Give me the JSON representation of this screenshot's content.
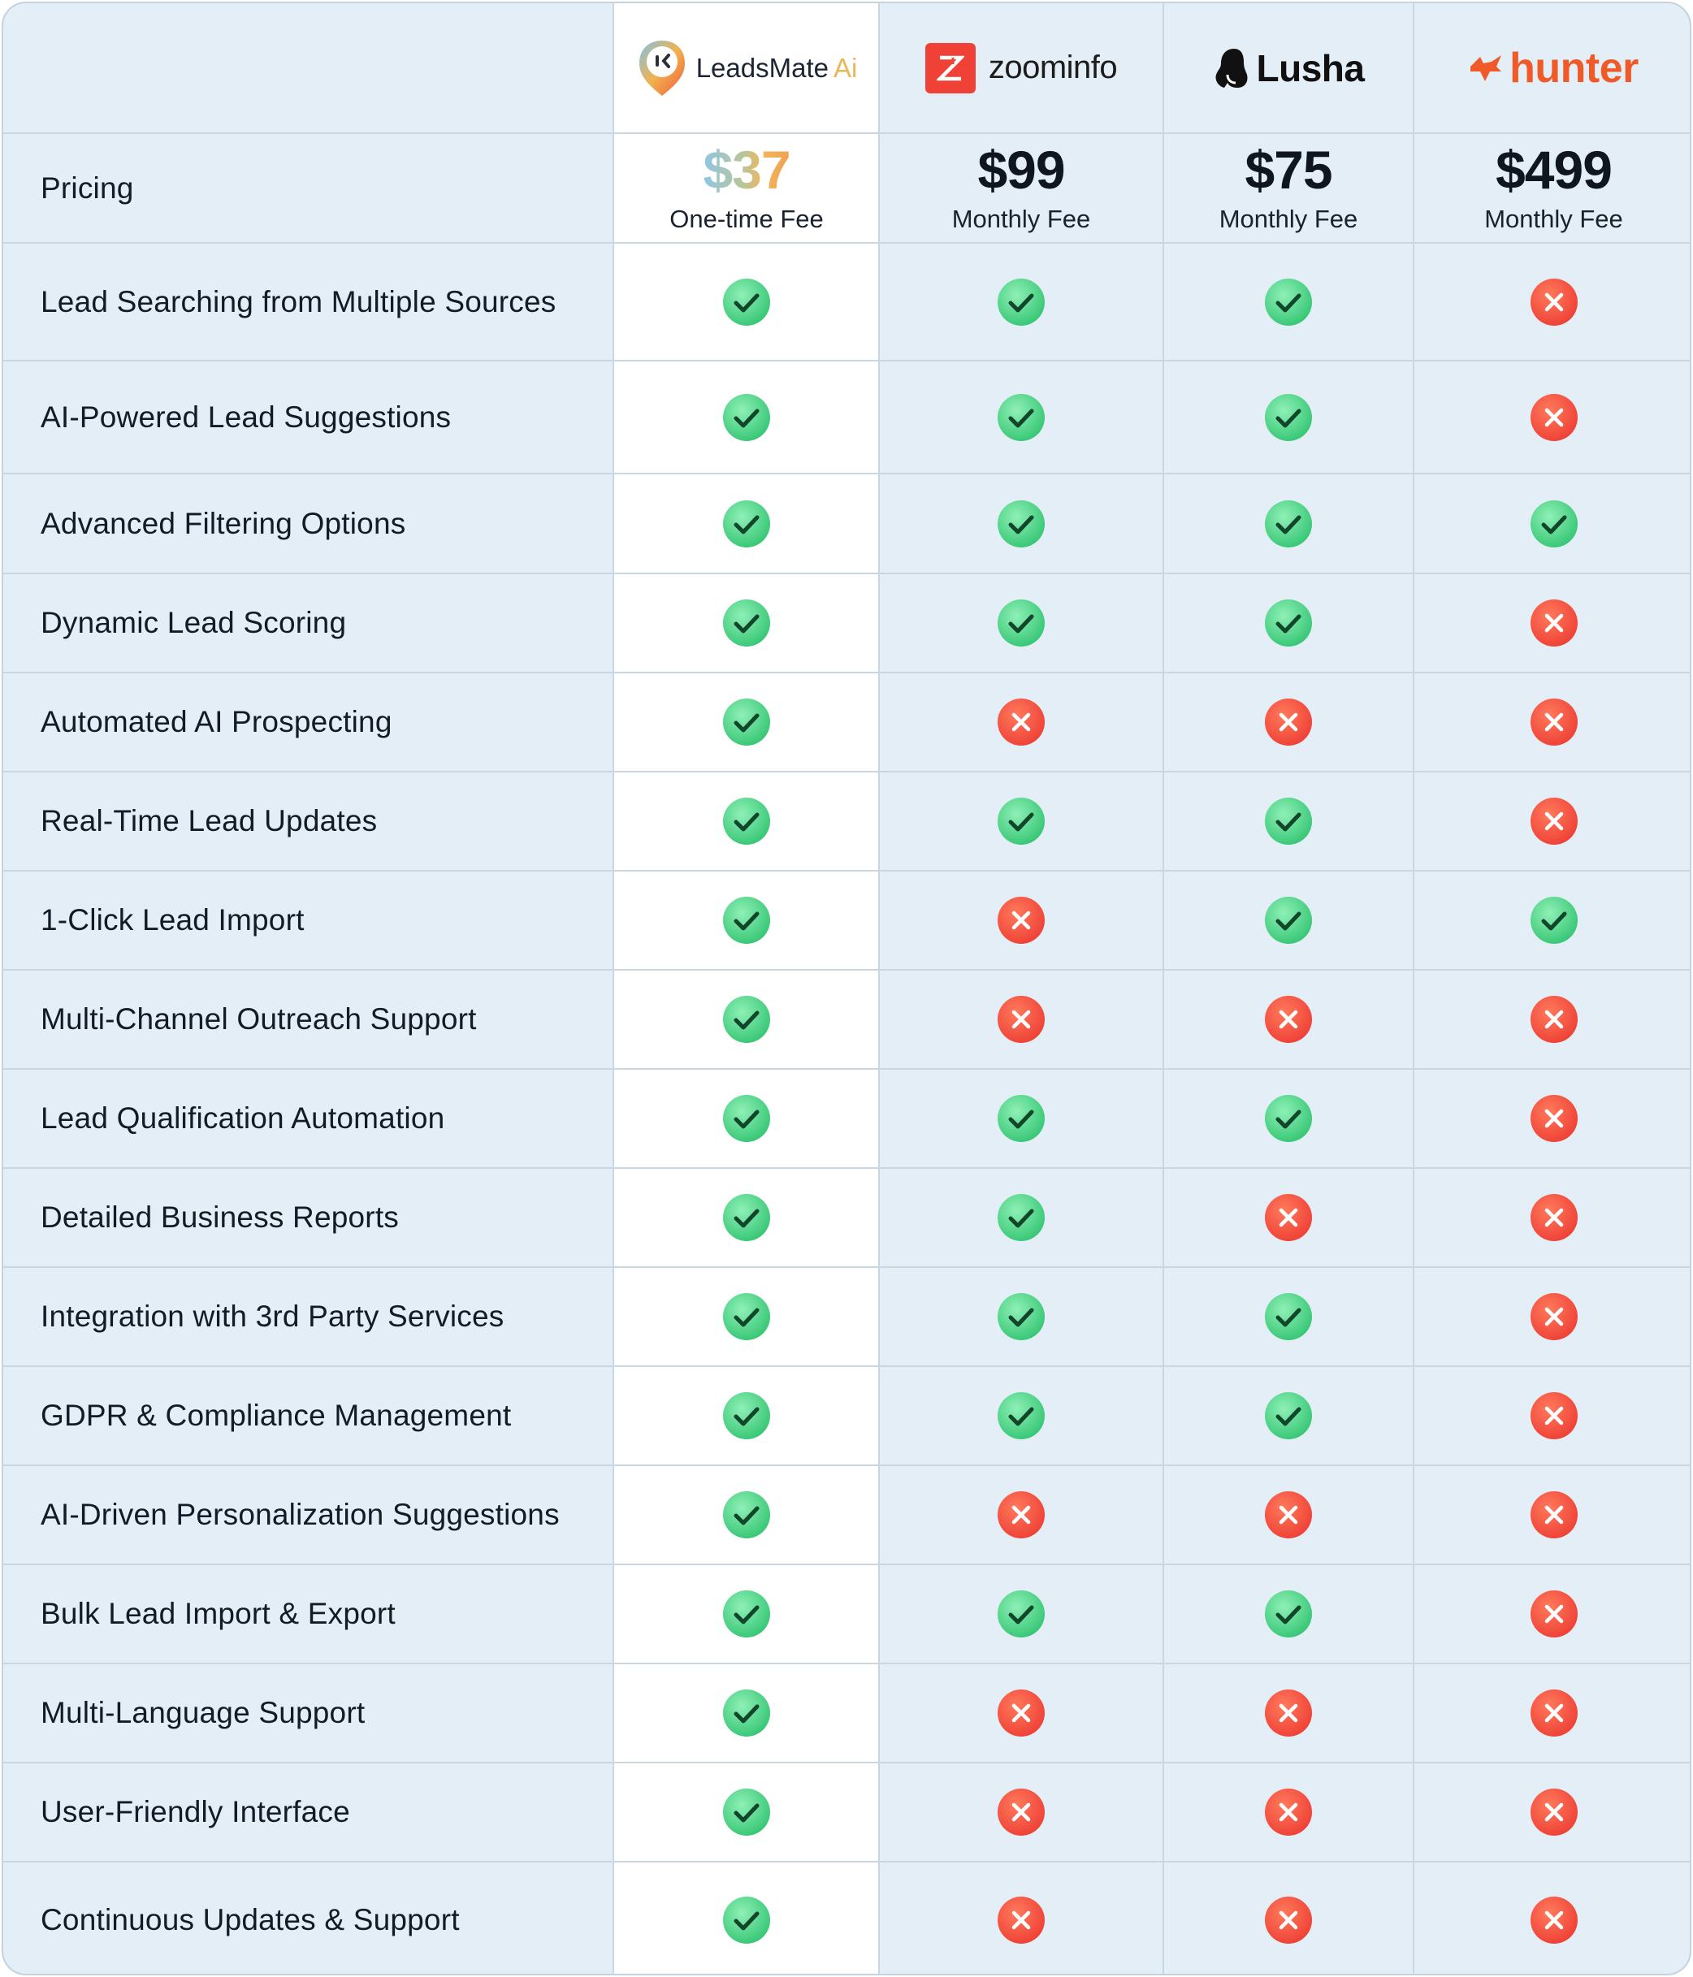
{
  "vendors": [
    {
      "key": "leadsmate",
      "logo_text": "LeadsMate",
      "logo_suffix": "Ai",
      "price": "$37",
      "fee": "One-time Fee"
    },
    {
      "key": "zoominfo",
      "logo_text": "zoominfo",
      "price": "$99",
      "fee": "Monthly Fee"
    },
    {
      "key": "lusha",
      "logo_text": "Lusha",
      "price": "$75",
      "fee": "Monthly Fee"
    },
    {
      "key": "hunter",
      "logo_text": "hunter",
      "price": "$499",
      "fee": "Monthly Fee"
    }
  ],
  "pricing_label": "Pricing",
  "icons": {
    "yes": "green-check-icon",
    "no": "red-x-icon"
  },
  "colors": {
    "yes": "#34c573",
    "no": "#ee3f35",
    "card": "#e3eef6",
    "highlight_column": "#ffffff"
  },
  "features": [
    {
      "label": "Lead Searching from Multiple Sources",
      "support": [
        true,
        true,
        true,
        false
      ]
    },
    {
      "label": "AI-Powered Lead Suggestions",
      "support": [
        true,
        true,
        true,
        false
      ]
    },
    {
      "label": "Advanced Filtering Options",
      "support": [
        true,
        true,
        true,
        true
      ]
    },
    {
      "label": "Dynamic Lead Scoring",
      "support": [
        true,
        true,
        true,
        false
      ]
    },
    {
      "label": "Automated AI Prospecting",
      "support": [
        true,
        false,
        false,
        false
      ]
    },
    {
      "label": "Real-Time Lead Updates",
      "support": [
        true,
        true,
        true,
        false
      ]
    },
    {
      "label": "1-Click Lead Import",
      "support": [
        true,
        false,
        true,
        true
      ]
    },
    {
      "label": "Multi-Channel Outreach Support",
      "support": [
        true,
        false,
        false,
        false
      ]
    },
    {
      "label": "Lead Qualification Automation",
      "support": [
        true,
        true,
        true,
        false
      ]
    },
    {
      "label": "Detailed Business Reports",
      "support": [
        true,
        true,
        false,
        false
      ]
    },
    {
      "label": "Integration with 3rd Party Services",
      "support": [
        true,
        true,
        true,
        false
      ]
    },
    {
      "label": "GDPR & Compliance Management",
      "support": [
        true,
        true,
        true,
        false
      ]
    },
    {
      "label": "AI-Driven Personalization Suggestions",
      "support": [
        true,
        false,
        false,
        false
      ]
    },
    {
      "label": "Bulk Lead Import & Export",
      "support": [
        true,
        true,
        true,
        false
      ]
    },
    {
      "label": "Multi-Language Support",
      "support": [
        true,
        false,
        false,
        false
      ]
    },
    {
      "label": "User-Friendly Interface",
      "support": [
        true,
        false,
        false,
        false
      ]
    },
    {
      "label": "Continuous Updates & Support",
      "support": [
        true,
        false,
        false,
        false
      ]
    }
  ]
}
